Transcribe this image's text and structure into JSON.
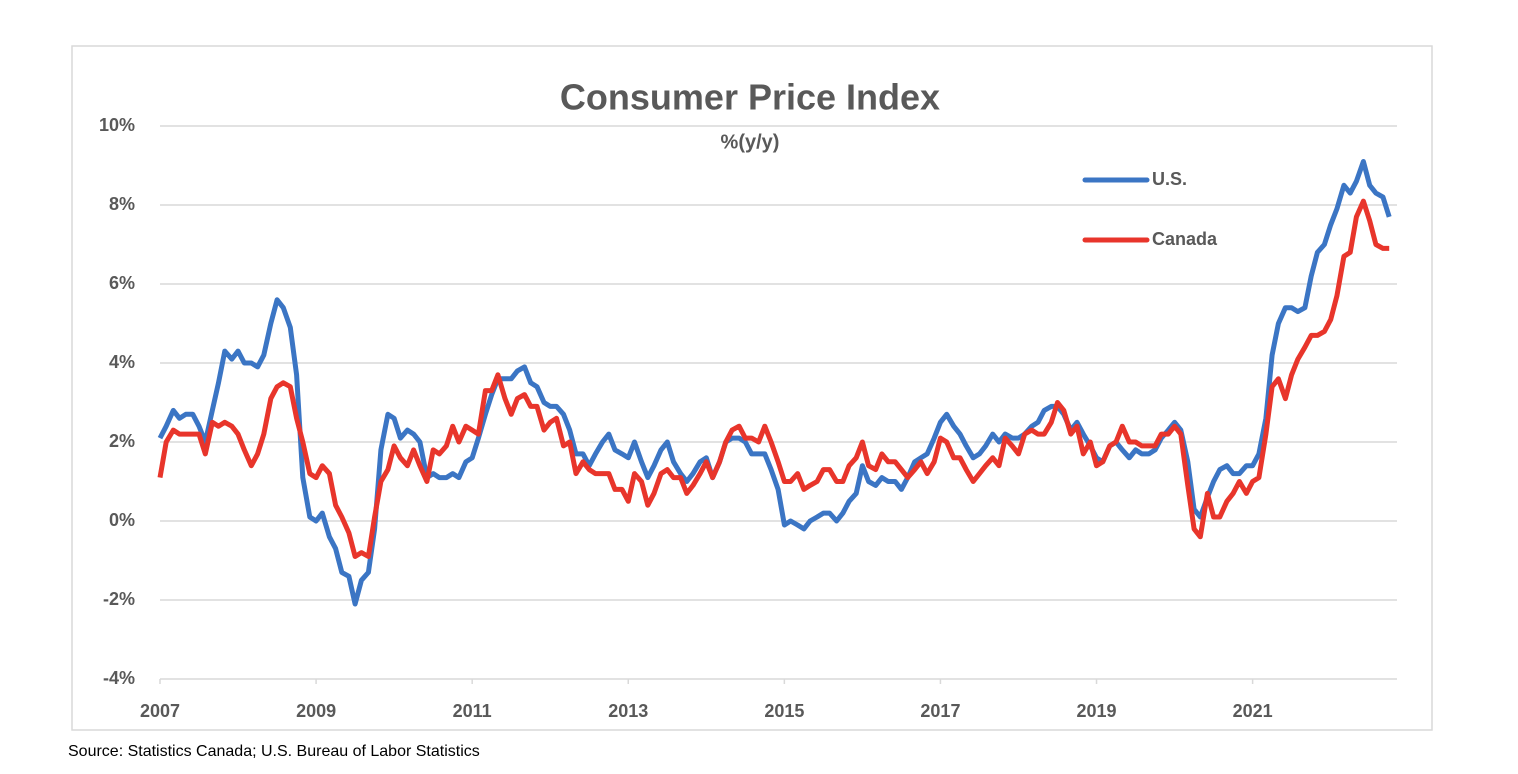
{
  "chart_data": {
    "type": "line",
    "title": "Consumer Price Index",
    "subtitle": "%(y/y)",
    "source": "Source: Statistics Canada; U.S. Bureau of Labor Statistics",
    "x": [
      2007,
      2007.08,
      2007.17,
      2007.25,
      2007.33,
      2007.42,
      2007.5,
      2007.58,
      2007.67,
      2007.75,
      2007.83,
      2007.92,
      2008,
      2008.08,
      2008.17,
      2008.25,
      2008.33,
      2008.42,
      2008.5,
      2008.58,
      2008.67,
      2008.75,
      2008.83,
      2008.92,
      2009,
      2009.08,
      2009.17,
      2009.25,
      2009.33,
      2009.42,
      2009.5,
      2009.58,
      2009.67,
      2009.75,
      2009.83,
      2009.92,
      2010,
      2010.08,
      2010.17,
      2010.25,
      2010.33,
      2010.42,
      2010.5,
      2010.58,
      2010.67,
      2010.75,
      2010.83,
      2010.92,
      2011,
      2011.08,
      2011.17,
      2011.25,
      2011.33,
      2011.42,
      2011.5,
      2011.58,
      2011.67,
      2011.75,
      2011.83,
      2011.92,
      2012,
      2012.08,
      2012.17,
      2012.25,
      2012.33,
      2012.42,
      2012.5,
      2012.58,
      2012.67,
      2012.75,
      2012.83,
      2012.92,
      2013,
      2013.08,
      2013.17,
      2013.25,
      2013.33,
      2013.42,
      2013.5,
      2013.58,
      2013.67,
      2013.75,
      2013.83,
      2013.92,
      2014,
      2014.08,
      2014.17,
      2014.25,
      2014.33,
      2014.42,
      2014.5,
      2014.58,
      2014.67,
      2014.75,
      2014.83,
      2014.92,
      2015,
      2015.08,
      2015.17,
      2015.25,
      2015.33,
      2015.42,
      2015.5,
      2015.58,
      2015.67,
      2015.75,
      2015.83,
      2015.92,
      2016,
      2016.08,
      2016.17,
      2016.25,
      2016.33,
      2016.42,
      2016.5,
      2016.58,
      2016.67,
      2016.75,
      2016.83,
      2016.92,
      2017,
      2017.08,
      2017.17,
      2017.25,
      2017.33,
      2017.42,
      2017.5,
      2017.58,
      2017.67,
      2017.75,
      2017.83,
      2017.92,
      2018,
      2018.08,
      2018.17,
      2018.25,
      2018.33,
      2018.42,
      2018.5,
      2018.58,
      2018.67,
      2018.75,
      2018.83,
      2018.92,
      2019,
      2019.08,
      2019.17,
      2019.25,
      2019.33,
      2019.42,
      2019.5,
      2019.58,
      2019.67,
      2019.75,
      2019.83,
      2019.92,
      2020,
      2020.08,
      2020.17,
      2020.25,
      2020.33,
      2020.42,
      2020.5,
      2020.58,
      2020.67,
      2020.75,
      2020.83,
      2020.92,
      2021,
      2021.08,
      2021.17,
      2021.25,
      2021.33,
      2021.42,
      2021.5,
      2021.58,
      2021.67,
      2021.75,
      2021.83,
      2021.92,
      2022,
      2022.08,
      2022.17,
      2022.25,
      2022.33,
      2022.42,
      2022.5,
      2022.58,
      2022.67,
      2022.75
    ],
    "series": [
      {
        "name": "U.S.",
        "color": "#3b75c4",
        "values": [
          2.1,
          2.4,
          2.8,
          2.6,
          2.7,
          2.7,
          2.4,
          2.0,
          2.8,
          3.5,
          4.3,
          4.1,
          4.3,
          4.0,
          4.0,
          3.9,
          4.2,
          5.0,
          5.6,
          5.4,
          4.9,
          3.7,
          1.1,
          0.1,
          0.0,
          0.2,
          -0.4,
          -0.7,
          -1.3,
          -1.4,
          -2.1,
          -1.5,
          -1.3,
          -0.2,
          1.8,
          2.7,
          2.6,
          2.1,
          2.3,
          2.2,
          2.0,
          1.1,
          1.2,
          1.1,
          1.1,
          1.2,
          1.1,
          1.5,
          1.6,
          2.1,
          2.7,
          3.2,
          3.6,
          3.6,
          3.6,
          3.8,
          3.9,
          3.5,
          3.4,
          3.0,
          2.9,
          2.9,
          2.7,
          2.3,
          1.7,
          1.7,
          1.4,
          1.7,
          2.0,
          2.2,
          1.8,
          1.7,
          1.6,
          2.0,
          1.5,
          1.1,
          1.4,
          1.8,
          2.0,
          1.5,
          1.2,
          1.0,
          1.2,
          1.5,
          1.6,
          1.1,
          1.5,
          2.0,
          2.1,
          2.1,
          2.0,
          1.7,
          1.7,
          1.7,
          1.3,
          0.8,
          -0.1,
          0.0,
          -0.1,
          -0.2,
          0.0,
          0.1,
          0.2,
          0.2,
          0.0,
          0.2,
          0.5,
          0.7,
          1.4,
          1.0,
          0.9,
          1.1,
          1.0,
          1.0,
          0.8,
          1.1,
          1.5,
          1.6,
          1.7,
          2.1,
          2.5,
          2.7,
          2.4,
          2.2,
          1.9,
          1.6,
          1.7,
          1.9,
          2.2,
          2.0,
          2.2,
          2.1,
          2.1,
          2.2,
          2.4,
          2.5,
          2.8,
          2.9,
          2.9,
          2.7,
          2.3,
          2.5,
          2.2,
          1.9,
          1.6,
          1.5,
          1.9,
          2.0,
          1.8,
          1.6,
          1.8,
          1.7,
          1.7,
          1.8,
          2.1,
          2.3,
          2.5,
          2.3,
          1.5,
          0.3,
          0.1,
          0.6,
          1.0,
          1.3,
          1.4,
          1.2,
          1.2,
          1.4,
          1.4,
          1.7,
          2.6,
          4.2,
          5.0,
          5.4,
          5.4,
          5.3,
          5.4,
          6.2,
          6.8,
          7.0,
          7.5,
          7.9,
          8.5,
          8.3,
          8.6,
          9.1,
          8.5,
          8.3,
          8.2,
          7.7
        ]
      },
      {
        "name": "Canada",
        "color": "#e8352b",
        "values": [
          1.1,
          2.0,
          2.3,
          2.2,
          2.2,
          2.2,
          2.2,
          1.7,
          2.5,
          2.4,
          2.5,
          2.4,
          2.2,
          1.8,
          1.4,
          1.7,
          2.2,
          3.1,
          3.4,
          3.5,
          3.4,
          2.6,
          2.0,
          1.2,
          1.1,
          1.4,
          1.2,
          0.4,
          0.1,
          -0.3,
          -0.9,
          -0.8,
          -0.9,
          0.1,
          1.0,
          1.3,
          1.9,
          1.6,
          1.4,
          1.8,
          1.4,
          1.0,
          1.8,
          1.7,
          1.9,
          2.4,
          2.0,
          2.4,
          2.3,
          2.2,
          3.3,
          3.3,
          3.7,
          3.1,
          2.7,
          3.1,
          3.2,
          2.9,
          2.9,
          2.3,
          2.5,
          2.6,
          1.9,
          2.0,
          1.2,
          1.5,
          1.3,
          1.2,
          1.2,
          1.2,
          0.8,
          0.8,
          0.5,
          1.2,
          1.0,
          0.4,
          0.7,
          1.2,
          1.3,
          1.1,
          1.1,
          0.7,
          0.9,
          1.2,
          1.5,
          1.1,
          1.5,
          2.0,
          2.3,
          2.4,
          2.1,
          2.1,
          2.0,
          2.4,
          2.0,
          1.5,
          1.0,
          1.0,
          1.2,
          0.8,
          0.9,
          1.0,
          1.3,
          1.3,
          1.0,
          1.0,
          1.4,
          1.6,
          2.0,
          1.4,
          1.3,
          1.7,
          1.5,
          1.5,
          1.3,
          1.1,
          1.3,
          1.5,
          1.2,
          1.5,
          2.1,
          2.0,
          1.6,
          1.6,
          1.3,
          1.0,
          1.2,
          1.4,
          1.6,
          1.4,
          2.1,
          1.9,
          1.7,
          2.2,
          2.3,
          2.2,
          2.2,
          2.5,
          3.0,
          2.8,
          2.2,
          2.4,
          1.7,
          2.0,
          1.4,
          1.5,
          1.9,
          2.0,
          2.4,
          2.0,
          2.0,
          1.9,
          1.9,
          1.9,
          2.2,
          2.2,
          2.4,
          2.2,
          0.9,
          -0.2,
          -0.4,
          0.7,
          0.1,
          0.1,
          0.5,
          0.7,
          1.0,
          0.7,
          1.0,
          1.1,
          2.2,
          3.4,
          3.6,
          3.1,
          3.7,
          4.1,
          4.4,
          4.7,
          4.7,
          4.8,
          5.1,
          5.7,
          6.7,
          6.8,
          7.7,
          8.1,
          7.6,
          7.0,
          6.9,
          6.9
        ]
      }
    ],
    "xlim": [
      2007,
      2022.85
    ],
    "xticks": [
      2007,
      2009,
      2011,
      2013,
      2015,
      2017,
      2019,
      2021
    ],
    "ylim": [
      -4,
      10
    ],
    "yticks": [
      {
        "value": -4,
        "label": "-4%"
      },
      {
        "value": -2,
        "label": "-2%"
      },
      {
        "value": 0,
        "label": "0%"
      },
      {
        "value": 2,
        "label": "2%"
      },
      {
        "value": 4,
        "label": "4%"
      },
      {
        "value": 6,
        "label": "6%"
      },
      {
        "value": 8,
        "label": "8%"
      },
      {
        "value": 10,
        "label": "10%"
      }
    ],
    "grid": true
  }
}
